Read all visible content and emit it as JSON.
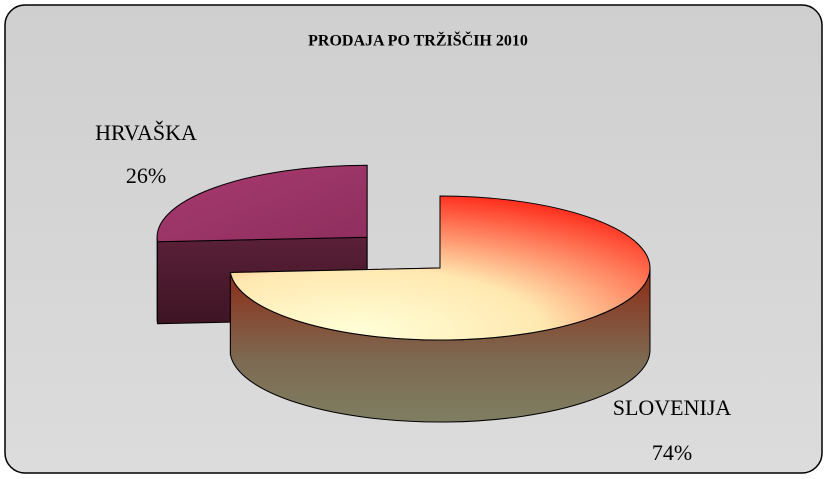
{
  "chart_data": {
    "type": "pie",
    "title": "PRODAJA PO TRŽIŠČIH 2010",
    "categories": [
      "SLOVENIJA",
      "HRVAŠKA"
    ],
    "values": [
      74,
      26
    ],
    "value_labels": [
      "74%",
      "26%"
    ],
    "colors": [
      "#ff3020",
      "#9b3366"
    ]
  }
}
